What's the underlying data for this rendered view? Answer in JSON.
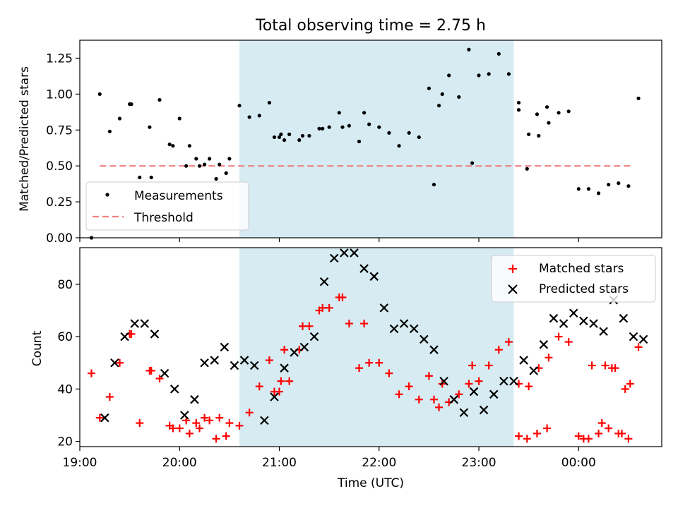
{
  "chart_data": [
    {
      "type": "scatter",
      "title": "Total observing time = 2.75 h",
      "ylabel": "Matched/Predicted stars",
      "xlim": [
        "19:00",
        "00:50"
      ],
      "ylim": [
        0,
        1.375
      ],
      "yticks": [
        "0.00",
        "0.25",
        "0.50",
        "0.75",
        "1.00",
        "1.25"
      ],
      "highlight_span": [
        "20:36",
        "23:21"
      ],
      "highlight_color": "#add8e6",
      "threshold": {
        "name": "Threshold",
        "value": 0.5,
        "x_range": [
          "19:12",
          "00:32"
        ],
        "color": "#f08080"
      },
      "legend": {
        "position": "lower-left",
        "entries": [
          "Measurements",
          "Threshold"
        ]
      },
      "series": [
        {
          "name": "Measurements",
          "color": "#000000",
          "x": [
            "19:12",
            "19:18",
            "19:24",
            "19:30",
            "19:36",
            "19:42",
            "19:48",
            "19:54",
            "20:00",
            "20:06",
            "20:12",
            "20:18",
            "20:24",
            "20:30",
            "20:36",
            "20:42",
            "20:48",
            "20:54",
            "21:00",
            "21:06",
            "21:12",
            "21:18",
            "21:24",
            "21:30",
            "21:36",
            "21:42",
            "21:48",
            "21:54",
            "22:00",
            "22:06",
            "22:12",
            "22:18",
            "22:24",
            "22:30",
            "22:36",
            "22:42",
            "22:48",
            "22:54",
            "23:00",
            "23:06",
            "23:12",
            "23:18",
            "23:24",
            "23:30",
            "23:36",
            "23:42",
            "23:48",
            "23:54",
            "00:00",
            "00:06",
            "00:12",
            "00:18",
            "00:24",
            "00:30",
            "00:36",
            "19:07",
            "19:31",
            "19:43",
            "19:56",
            "20:04",
            "20:10",
            "20:15",
            "20:22",
            "20:28",
            "20:57",
            "21:01",
            "21:03",
            "21:14",
            "21:26",
            "21:38",
            "21:51",
            "22:33",
            "22:38",
            "22:56",
            "23:24",
            "23:29",
            "23:35",
            "23:41"
          ],
          "y": [
            1.0,
            0.74,
            0.83,
            0.93,
            0.42,
            0.77,
            0.96,
            0.65,
            0.83,
            0.64,
            0.5,
            0.55,
            0.51,
            0.55,
            0.92,
            0.84,
            0.85,
            0.94,
            0.7,
            0.72,
            0.68,
            0.71,
            0.76,
            0.77,
            0.87,
            0.78,
            0.67,
            0.79,
            0.77,
            0.73,
            0.64,
            0.73,
            0.7,
            1.04,
            0.92,
            1.13,
            0.98,
            1.31,
            1.13,
            1.14,
            1.28,
            1.14,
            0.89,
            0.72,
            0.71,
            0.8,
            0.87,
            0.88,
            0.34,
            0.34,
            0.31,
            0.37,
            0.38,
            0.36,
            0.97,
            0.0,
            0.93,
            0.42,
            0.64,
            0.5,
            0.55,
            0.51,
            0.41,
            0.45,
            0.7,
            0.72,
            0.68,
            0.71,
            0.76,
            0.77,
            0.87,
            0.37,
            1.0,
            0.52,
            0.94,
            0.48,
            0.86,
            0.91
          ]
        }
      ]
    },
    {
      "type": "scatter",
      "xlabel": "Time (UTC)",
      "ylabel": "Count",
      "xlim": [
        "19:00",
        "00:50"
      ],
      "xticks": [
        "19:00",
        "20:00",
        "21:00",
        "22:00",
        "23:00",
        "00:00"
      ],
      "ylim": [
        18,
        94
      ],
      "yticks": [
        "20",
        "40",
        "60",
        "80"
      ],
      "highlight_span": [
        "20:36",
        "23:21"
      ],
      "legend": {
        "position": "top-right",
        "entries": [
          "Matched stars",
          "Predicted stars"
        ]
      },
      "series": [
        {
          "name": "Matched stars",
          "marker": "+",
          "color": "#ff0000",
          "x": [
            "19:12",
            "19:18",
            "19:24",
            "19:30",
            "19:36",
            "19:42",
            "19:48",
            "19:54",
            "20:00",
            "20:06",
            "20:12",
            "20:18",
            "20:24",
            "20:30",
            "20:36",
            "20:42",
            "20:48",
            "20:54",
            "21:00",
            "21:06",
            "21:12",
            "21:18",
            "21:24",
            "21:30",
            "21:36",
            "21:42",
            "21:48",
            "21:54",
            "22:00",
            "22:06",
            "22:12",
            "22:18",
            "22:24",
            "22:30",
            "22:36",
            "22:42",
            "22:48",
            "22:54",
            "23:00",
            "23:06",
            "23:12",
            "23:18",
            "23:24",
            "23:30",
            "23:36",
            "23:42",
            "23:48",
            "23:54",
            "00:00",
            "00:06",
            "00:12",
            "00:18",
            "00:24",
            "00:30",
            "00:36",
            "19:07",
            "19:31",
            "19:43",
            "19:56",
            "20:04",
            "20:10",
            "20:15",
            "20:22",
            "20:28",
            "20:57",
            "21:01",
            "21:03",
            "21:14",
            "21:26",
            "21:38",
            "21:51",
            "22:33",
            "22:38",
            "22:56",
            "23:24",
            "23:29",
            "23:35",
            "23:41",
            "00:03",
            "00:08",
            "00:14",
            "00:20",
            "00:26",
            "00:31",
            "00:16",
            "00:22",
            "00:28"
          ],
          "y": [
            29,
            37,
            50,
            61,
            27,
            47,
            44,
            26,
            25,
            23,
            25,
            28,
            29,
            27,
            26,
            31,
            41,
            51,
            39,
            43,
            55,
            64,
            70,
            71,
            75,
            65,
            48,
            50,
            50,
            46,
            38,
            41,
            36,
            45,
            33,
            35,
            38,
            42,
            43,
            49,
            55,
            58,
            42,
            41,
            48,
            52,
            60,
            58,
            22,
            21,
            23,
            25,
            23,
            21,
            56,
            46,
            61,
            47,
            25,
            28,
            27,
            29,
            21,
            22,
            39,
            43,
            55,
            64,
            71,
            75,
            65,
            36,
            42,
            49,
            22,
            21,
            23,
            25,
            21,
            49,
            27,
            48,
            23,
            42,
            49,
            48,
            40
          ]
        },
        {
          "name": "Predicted stars",
          "marker": "x",
          "color": "#000000",
          "x": [
            "19:15",
            "19:21",
            "19:27",
            "19:33",
            "19:39",
            "19:45",
            "19:51",
            "19:57",
            "20:03",
            "20:09",
            "20:15",
            "20:21",
            "20:27",
            "20:33",
            "20:39",
            "20:45",
            "20:51",
            "20:57",
            "21:03",
            "21:09",
            "21:15",
            "21:21",
            "21:27",
            "21:33",
            "21:39",
            "21:45",
            "21:51",
            "21:57",
            "22:03",
            "22:09",
            "22:15",
            "22:21",
            "22:27",
            "22:33",
            "22:39",
            "22:45",
            "22:51",
            "22:57",
            "23:03",
            "23:09",
            "23:15",
            "23:21",
            "23:27",
            "23:33",
            "23:39",
            "23:45",
            "23:51",
            "23:57",
            "00:03",
            "00:09",
            "00:15",
            "00:21",
            "00:27",
            "00:33",
            "00:39"
          ],
          "y": [
            29,
            50,
            60,
            65,
            65,
            61,
            46,
            40,
            30,
            36,
            50,
            51,
            56,
            49,
            51,
            49,
            28,
            37,
            48,
            54,
            56,
            60,
            81,
            90,
            92,
            92,
            86,
            83,
            71,
            63,
            65,
            63,
            59,
            55,
            43,
            36,
            31,
            39,
            32,
            38,
            43,
            43,
            51,
            47,
            57,
            67,
            65,
            69,
            66,
            65,
            62,
            74,
            67,
            60,
            59
          ]
        }
      ]
    }
  ]
}
